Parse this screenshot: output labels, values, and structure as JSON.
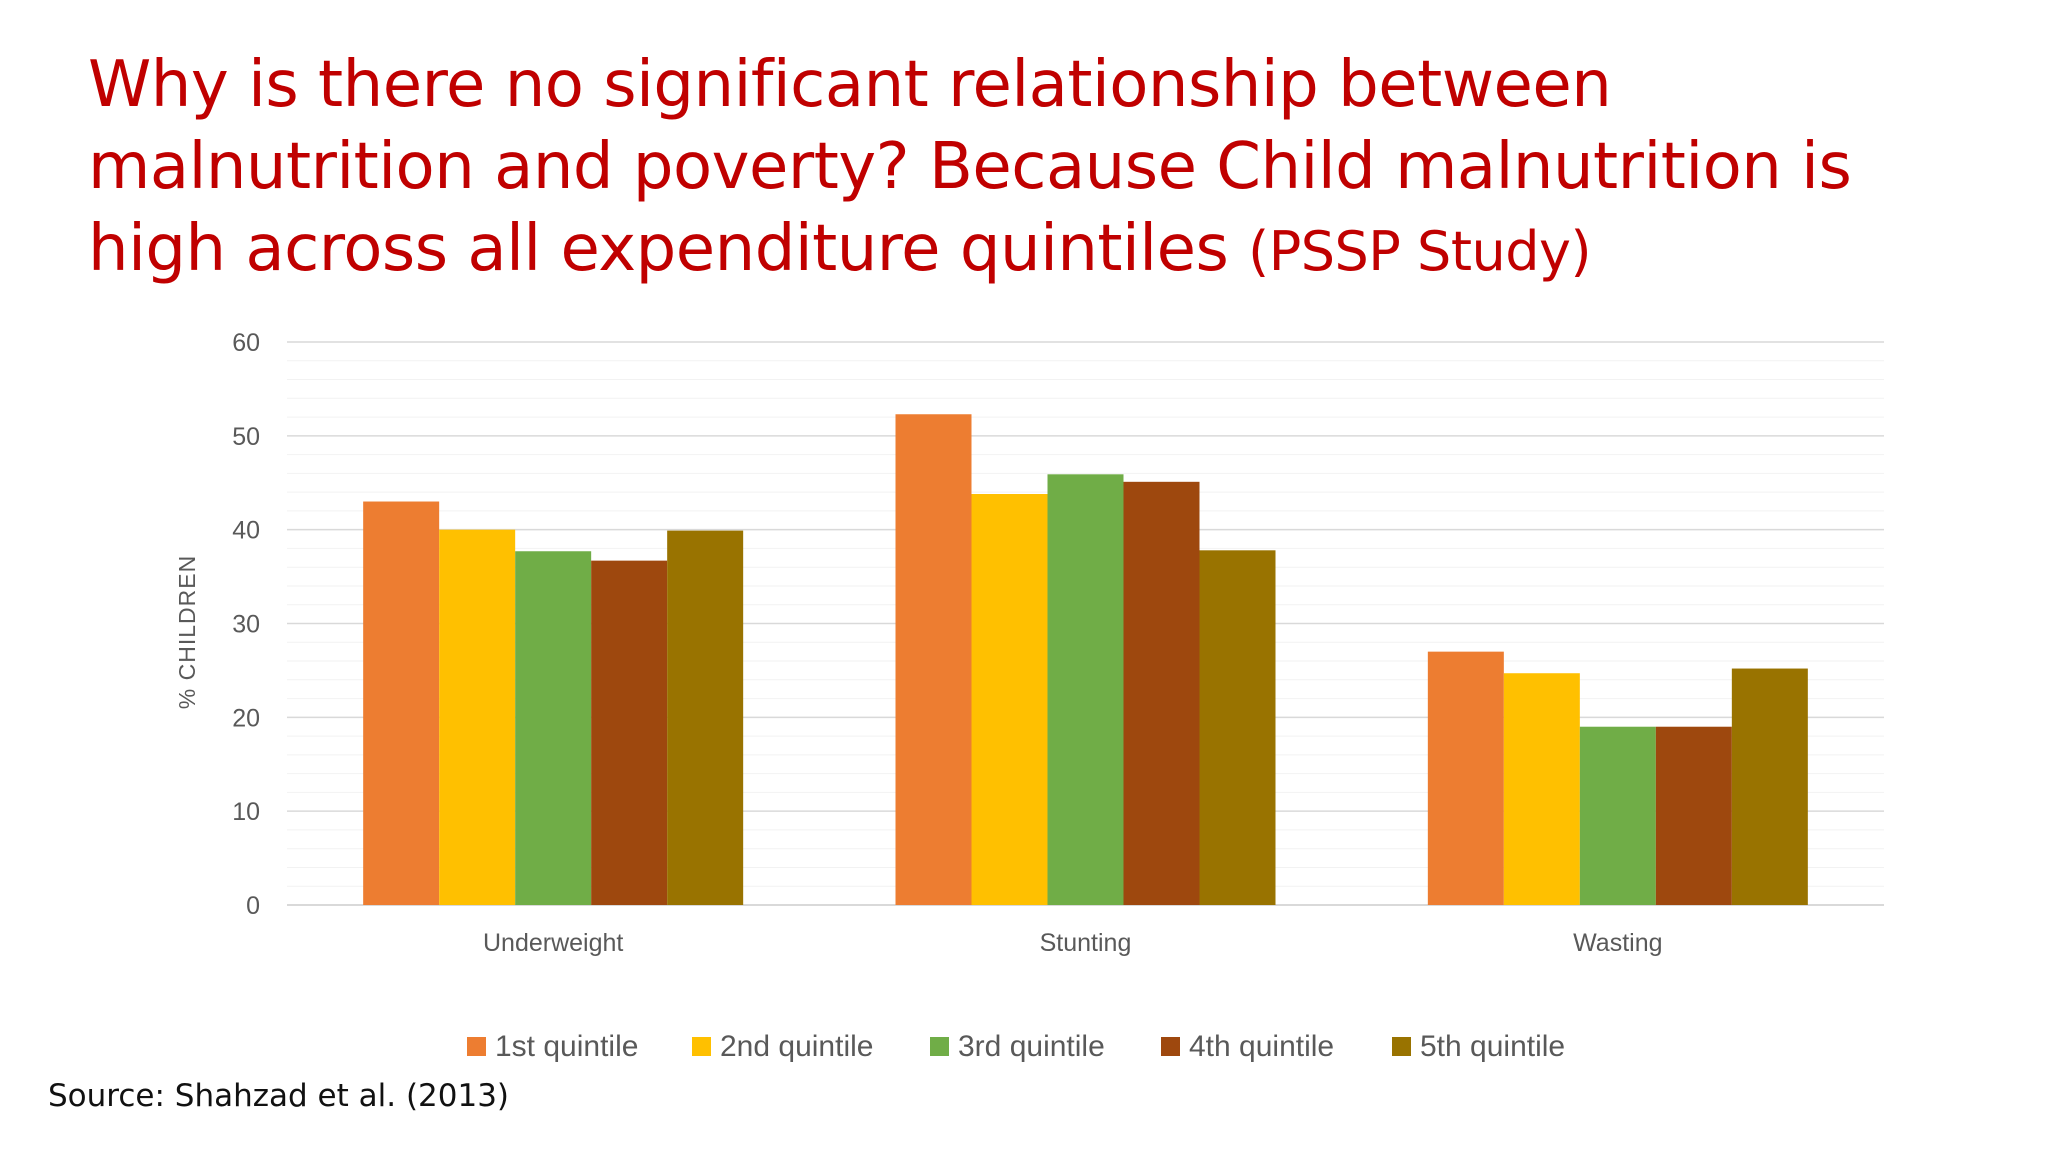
{
  "slide": {
    "title_main": "Why is there no significant relationship between malnutrition and poverty? Because Child malnutrition is high across all expenditure quintiles",
    "title_paren": "(PSSP Study)",
    "source": "Source: Shahzad et al. (2013)"
  },
  "chart_data": {
    "type": "bar",
    "categories": [
      "Underweight",
      "Stunting",
      "Wasting"
    ],
    "series": [
      {
        "name": "1st quintile",
        "color": "#ed7d31",
        "values": [
          43.0,
          52.3,
          27.0
        ]
      },
      {
        "name": "2nd quintile",
        "color": "#ffc000",
        "values": [
          40.0,
          43.8,
          24.7
        ]
      },
      {
        "name": "3rd quintile",
        "color": "#70ad47",
        "values": [
          37.7,
          45.9,
          19.0
        ]
      },
      {
        "name": "4th quintile",
        "color": "#9e480e",
        "values": [
          36.7,
          45.1,
          19.0
        ]
      },
      {
        "name": "5th quintile",
        "color": "#997300",
        "values": [
          39.9,
          37.8,
          25.2
        ]
      }
    ],
    "title": "",
    "xlabel": "",
    "ylabel": "% CHILDREN",
    "ylim": [
      0,
      60
    ],
    "yticks": [
      0,
      10,
      20,
      30,
      40,
      50,
      60
    ],
    "grid": true,
    "legend_position": "bottom"
  }
}
